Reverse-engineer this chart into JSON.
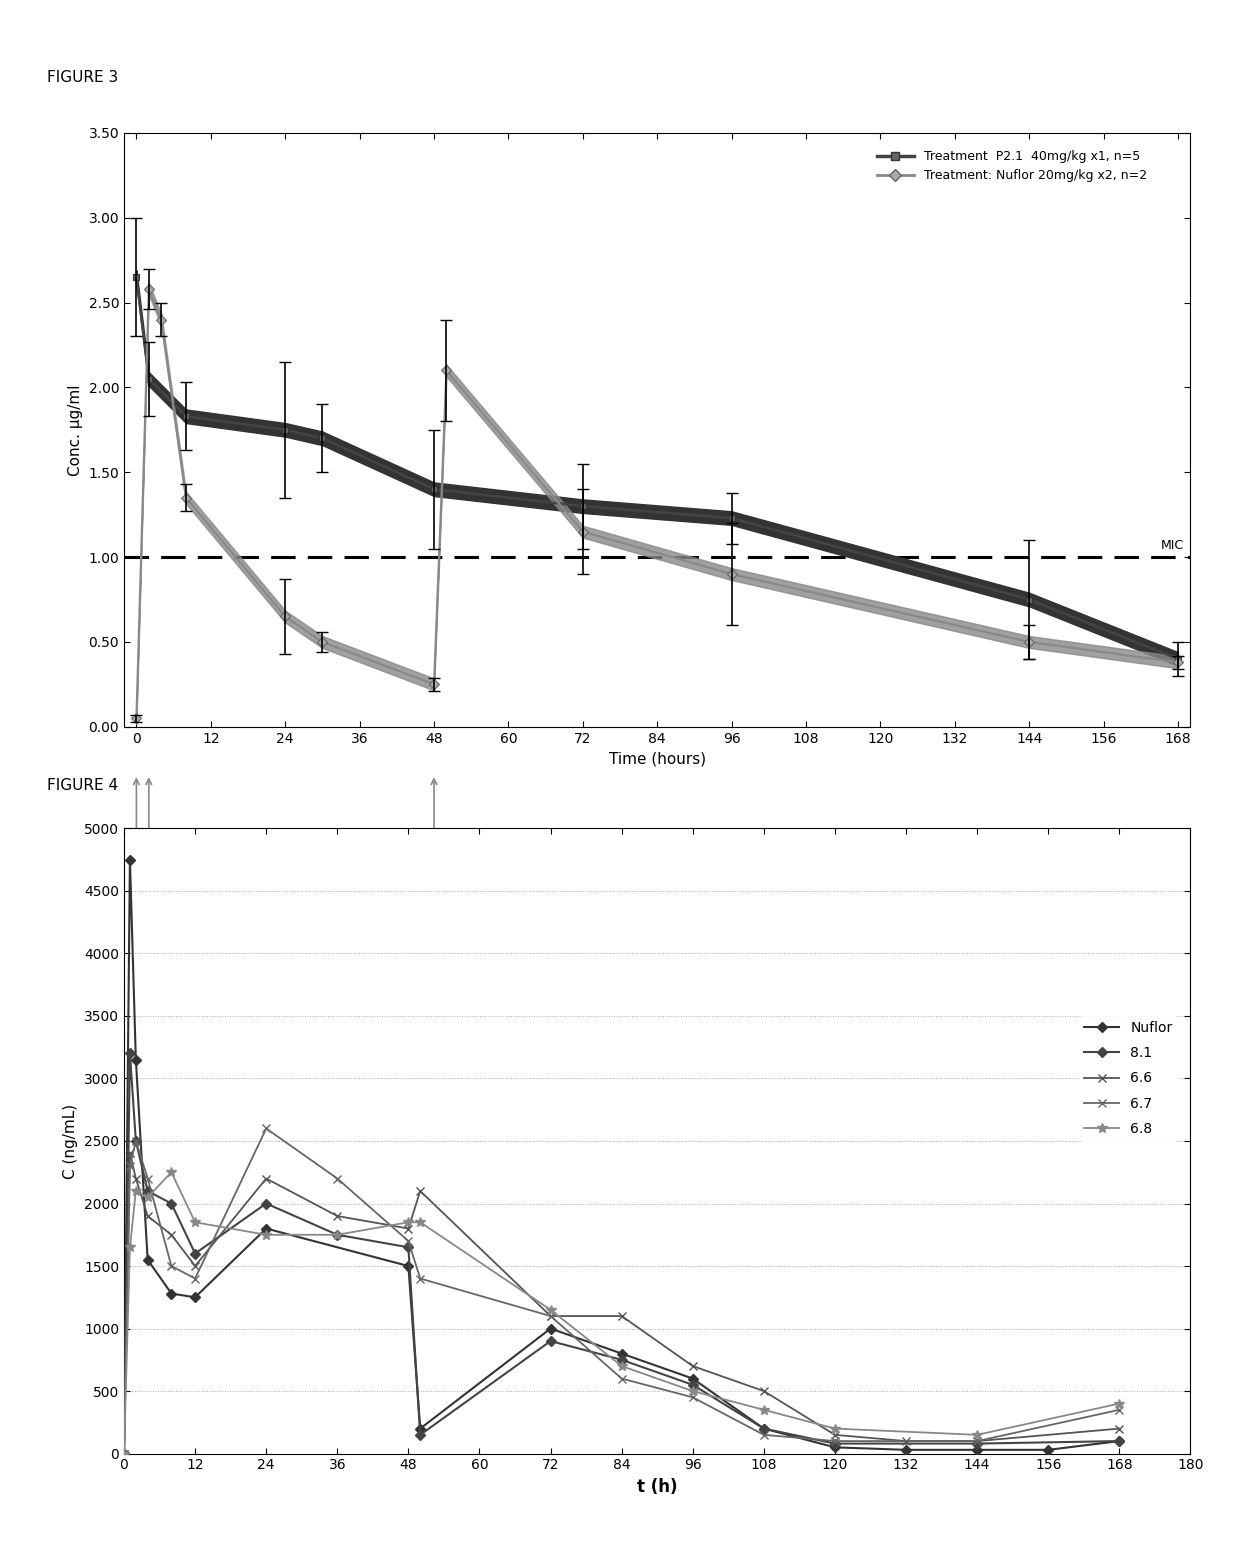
{
  "fig3": {
    "title": "FIGURE 3",
    "xlabel": "Time (hours)",
    "ylabel": "Conc. μg/ml",
    "xlim": [
      -2,
      170
    ],
    "ylim": [
      0.0,
      3.5
    ],
    "xticks": [
      0,
      12,
      24,
      36,
      48,
      60,
      72,
      84,
      96,
      108,
      120,
      132,
      144,
      156,
      168
    ],
    "yticks": [
      0.0,
      0.5,
      1.0,
      1.5,
      2.0,
      2.5,
      3.0,
      3.5
    ],
    "mic_y": 1.0,
    "mic_label": "MIC",
    "legend1_label": "Treatment  P2.1  40mg/kg x1, n=5",
    "legend2_label": "Treatment: Nuflor 20mg/kg x2, n=2",
    "series1": {
      "x": [
        0,
        2,
        8,
        24,
        30,
        48,
        72,
        96,
        144,
        168
      ],
      "y": [
        2.65,
        2.05,
        1.83,
        1.75,
        1.7,
        1.4,
        1.3,
        1.23,
        0.75,
        0.4
      ],
      "yerr": [
        0.35,
        0.22,
        0.2,
        0.4,
        0.2,
        0.35,
        0.25,
        0.15,
        0.35,
        0.1
      ]
    },
    "series2": {
      "x": [
        0,
        2,
        4,
        8,
        24,
        30,
        48,
        50,
        72,
        96,
        144,
        168
      ],
      "y": [
        0.05,
        2.58,
        2.4,
        1.35,
        0.65,
        0.5,
        0.25,
        2.1,
        1.15,
        0.9,
        0.5,
        0.38
      ],
      "yerr": [
        0.02,
        0.12,
        0.1,
        0.08,
        0.22,
        0.06,
        0.04,
        0.3,
        0.25,
        0.3,
        0.1,
        0.04
      ]
    }
  },
  "fig4": {
    "title": "FIGURE 4",
    "xlabel": "t (h)",
    "ylabel": "C (ng/mL)",
    "xlim": [
      0,
      180
    ],
    "ylim": [
      0,
      5000
    ],
    "xticks": [
      0,
      12,
      24,
      36,
      48,
      60,
      72,
      84,
      96,
      108,
      120,
      132,
      144,
      156,
      168,
      180
    ],
    "yticks": [
      0,
      500,
      1000,
      1500,
      2000,
      2500,
      3000,
      3500,
      4000,
      4500,
      5000
    ],
    "series": {
      "Nuflor": {
        "x": [
          0,
          1,
          2,
          4,
          8,
          12,
          24,
          48,
          50,
          72,
          84,
          96,
          108,
          120,
          132,
          144,
          156,
          168
        ],
        "y": [
          0,
          4750,
          3150,
          1550,
          1280,
          1250,
          1800,
          1500,
          200,
          1000,
          800,
          600,
          200,
          50,
          30,
          30,
          30,
          100
        ]
      },
      "8.1": {
        "x": [
          0,
          1,
          2,
          4,
          8,
          12,
          24,
          36,
          48,
          50,
          72,
          84,
          96,
          108,
          120,
          144,
          168
        ],
        "y": [
          0,
          3200,
          2500,
          2100,
          2000,
          1600,
          2000,
          1750,
          1650,
          150,
          900,
          750,
          550,
          200,
          80,
          80,
          100
        ]
      },
      "6.6": {
        "x": [
          0,
          1,
          2,
          4,
          8,
          12,
          24,
          36,
          48,
          50,
          72,
          84,
          96,
          108,
          120,
          132,
          144,
          168
        ],
        "y": [
          0,
          2400,
          2200,
          1900,
          1750,
          1500,
          2200,
          1900,
          1800,
          2100,
          1100,
          1100,
          700,
          500,
          150,
          100,
          100,
          200
        ]
      },
      "6.7": {
        "x": [
          0,
          1,
          2,
          4,
          8,
          12,
          24,
          36,
          48,
          50,
          72,
          84,
          96,
          108,
          120,
          144,
          168
        ],
        "y": [
          0,
          2300,
          2500,
          2200,
          1500,
          1400,
          2600,
          2200,
          1700,
          1400,
          1100,
          600,
          450,
          150,
          100,
          100,
          350
        ]
      },
      "6.8": {
        "x": [
          0,
          1,
          2,
          4,
          8,
          12,
          24,
          36,
          48,
          50,
          72,
          84,
          96,
          108,
          120,
          144,
          168
        ],
        "y": [
          0,
          1650,
          2100,
          2050,
          2250,
          1850,
          1750,
          1750,
          1850,
          1850,
          1150,
          700,
          500,
          350,
          200,
          150,
          400
        ]
      }
    }
  }
}
